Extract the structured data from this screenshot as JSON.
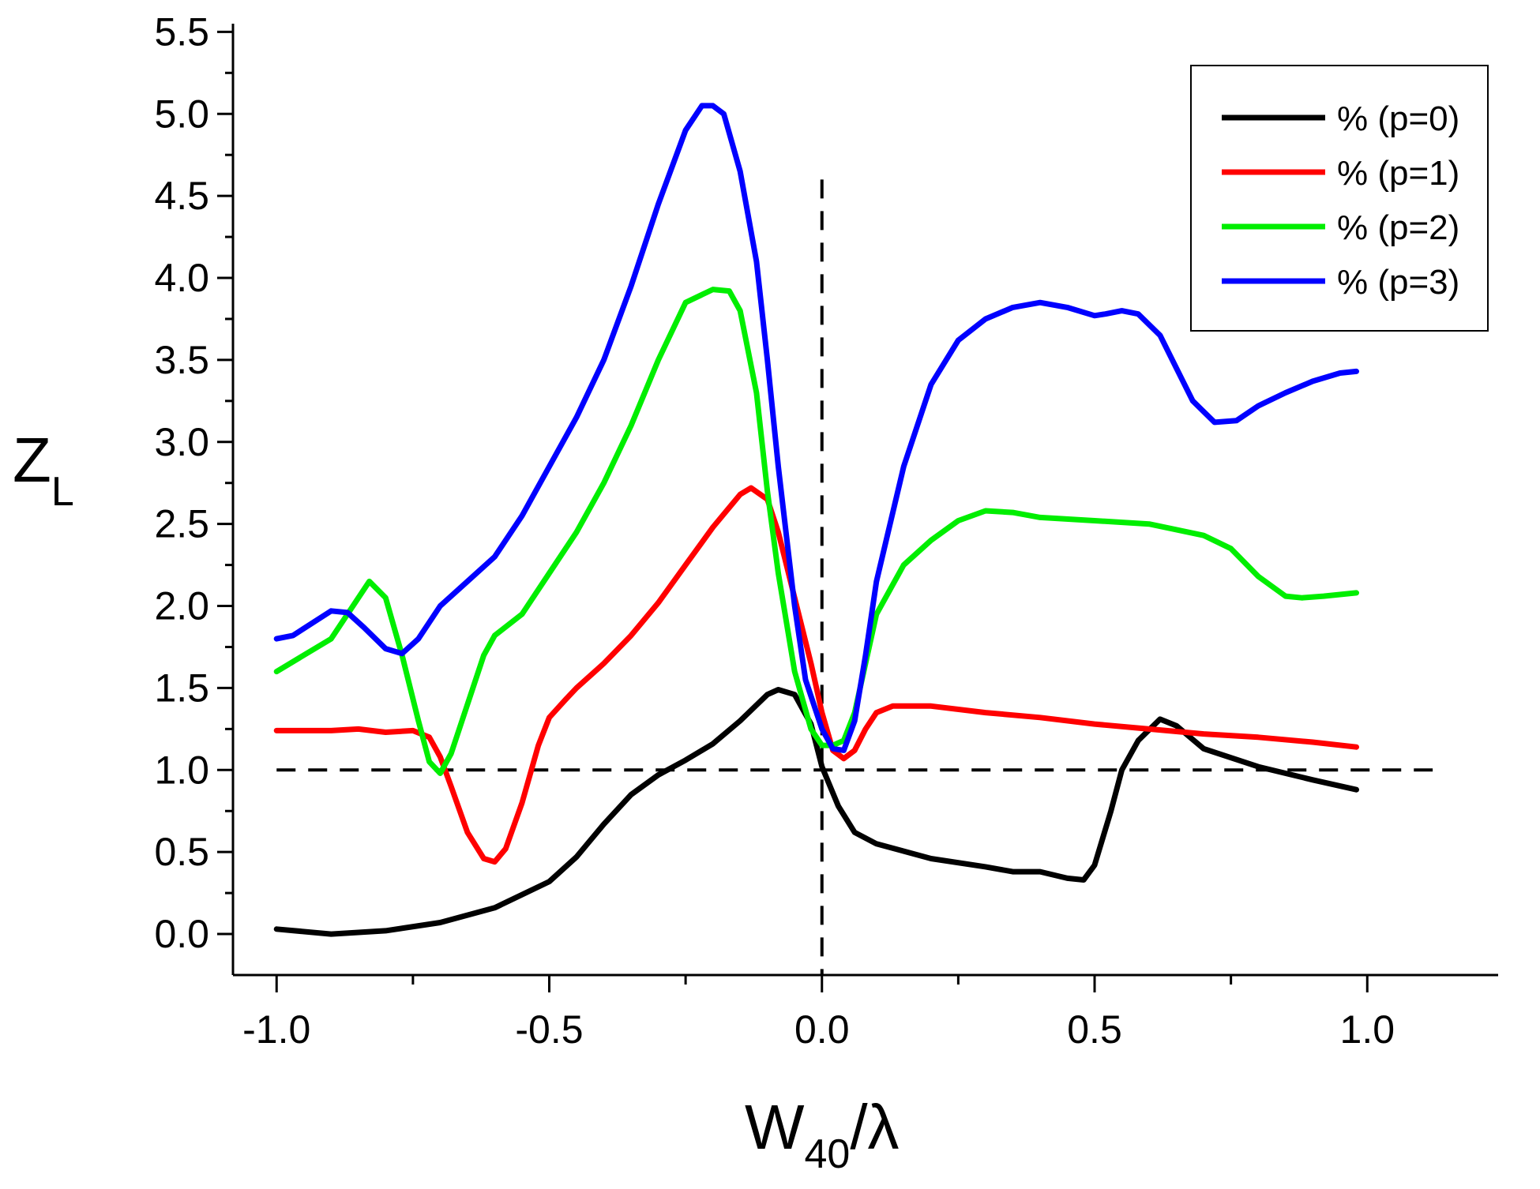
{
  "chart_data": {
    "type": "line",
    "title": "",
    "xlabel": {
      "main": "W",
      "sub": "40",
      "suffix": "/λ"
    },
    "ylabel": {
      "main": "Z",
      "sub": "L"
    },
    "xlim": [
      -1.08,
      1.24
    ],
    "ylim": [
      -0.25,
      5.55
    ],
    "x_ticks": [
      -1.0,
      -0.5,
      0.0,
      0.5,
      1.0
    ],
    "x_tick_labels": [
      "-1.0",
      "-0.5",
      "0.0",
      "0.5",
      "1.0"
    ],
    "x_minor_ticks": [
      -0.75,
      -0.25,
      0.25,
      0.75
    ],
    "y_ticks": [
      0.0,
      0.5,
      1.0,
      1.5,
      2.0,
      2.5,
      3.0,
      3.5,
      4.0,
      4.5,
      5.0,
      5.5
    ],
    "y_tick_labels": [
      "0.0",
      "0.5",
      "1.0",
      "1.5",
      "2.0",
      "2.5",
      "3.0",
      "3.5",
      "4.0",
      "4.5",
      "5.0",
      "5.5"
    ],
    "reference_lines": [
      {
        "orientation": "horizontal",
        "value": 1.0,
        "style": "dashed",
        "color": "#000000"
      },
      {
        "orientation": "vertical",
        "value": 0.0,
        "style": "dashed",
        "color": "#000000",
        "y_to": 4.6
      }
    ],
    "legend": {
      "position": "top-right",
      "frame": true
    },
    "series": [
      {
        "name": "% (p=0)",
        "color": "#000000",
        "x": [
          -1.0,
          -0.9,
          -0.8,
          -0.7,
          -0.6,
          -0.5,
          -0.45,
          -0.4,
          -0.35,
          -0.3,
          -0.25,
          -0.2,
          -0.15,
          -0.1,
          -0.08,
          -0.05,
          -0.02,
          0.0,
          0.03,
          0.06,
          0.1,
          0.2,
          0.3,
          0.35,
          0.4,
          0.45,
          0.48,
          0.5,
          0.53,
          0.55,
          0.58,
          0.62,
          0.65,
          0.7,
          0.8,
          0.9,
          0.98
        ],
        "y": [
          0.03,
          0.0,
          0.02,
          0.07,
          0.16,
          0.32,
          0.47,
          0.67,
          0.85,
          0.97,
          1.06,
          1.16,
          1.3,
          1.46,
          1.49,
          1.46,
          1.28,
          1.02,
          0.78,
          0.62,
          0.55,
          0.46,
          0.41,
          0.38,
          0.38,
          0.34,
          0.33,
          0.42,
          0.75,
          1.0,
          1.18,
          1.31,
          1.27,
          1.13,
          1.02,
          0.94,
          0.88
        ]
      },
      {
        "name": "% (p=1)",
        "color": "#ff0000",
        "x": [
          -1.0,
          -0.9,
          -0.85,
          -0.8,
          -0.75,
          -0.72,
          -0.7,
          -0.68,
          -0.65,
          -0.62,
          -0.6,
          -0.58,
          -0.55,
          -0.52,
          -0.5,
          -0.47,
          -0.45,
          -0.4,
          -0.35,
          -0.3,
          -0.25,
          -0.2,
          -0.15,
          -0.13,
          -0.1,
          -0.08,
          -0.05,
          -0.02,
          0.0,
          0.02,
          0.04,
          0.06,
          0.08,
          0.1,
          0.13,
          0.2,
          0.3,
          0.4,
          0.5,
          0.6,
          0.7,
          0.8,
          0.9,
          0.98
        ],
        "y": [
          1.24,
          1.24,
          1.25,
          1.23,
          1.24,
          1.2,
          1.08,
          0.9,
          0.62,
          0.46,
          0.44,
          0.52,
          0.8,
          1.15,
          1.32,
          1.43,
          1.5,
          1.65,
          1.82,
          2.02,
          2.25,
          2.48,
          2.68,
          2.72,
          2.65,
          2.45,
          2.05,
          1.65,
          1.35,
          1.12,
          1.07,
          1.12,
          1.25,
          1.35,
          1.39,
          1.39,
          1.35,
          1.32,
          1.28,
          1.25,
          1.22,
          1.2,
          1.17,
          1.14
        ]
      },
      {
        "name": "% (p=2)",
        "color": "#00ee00",
        "x": [
          -1.0,
          -0.9,
          -0.85,
          -0.83,
          -0.8,
          -0.77,
          -0.74,
          -0.72,
          -0.7,
          -0.68,
          -0.65,
          -0.62,
          -0.6,
          -0.55,
          -0.5,
          -0.45,
          -0.4,
          -0.35,
          -0.3,
          -0.25,
          -0.2,
          -0.17,
          -0.15,
          -0.12,
          -0.1,
          -0.08,
          -0.05,
          -0.02,
          0.0,
          0.02,
          0.04,
          0.06,
          0.08,
          0.1,
          0.15,
          0.2,
          0.25,
          0.3,
          0.35,
          0.4,
          0.5,
          0.6,
          0.7,
          0.75,
          0.8,
          0.85,
          0.88,
          0.92,
          0.98
        ],
        "y": [
          1.6,
          1.8,
          2.05,
          2.15,
          2.05,
          1.7,
          1.3,
          1.05,
          0.98,
          1.1,
          1.4,
          1.7,
          1.82,
          1.95,
          2.2,
          2.45,
          2.75,
          3.1,
          3.5,
          3.85,
          3.93,
          3.92,
          3.8,
          3.3,
          2.7,
          2.2,
          1.6,
          1.25,
          1.15,
          1.15,
          1.18,
          1.35,
          1.65,
          1.95,
          2.25,
          2.4,
          2.52,
          2.58,
          2.57,
          2.54,
          2.52,
          2.5,
          2.43,
          2.35,
          2.18,
          2.06,
          2.05,
          2.06,
          2.08
        ]
      },
      {
        "name": "% (p=3)",
        "color": "#0000ff",
        "x": [
          -1.0,
          -0.97,
          -0.9,
          -0.87,
          -0.84,
          -0.8,
          -0.77,
          -0.74,
          -0.7,
          -0.65,
          -0.6,
          -0.55,
          -0.5,
          -0.45,
          -0.4,
          -0.35,
          -0.3,
          -0.25,
          -0.22,
          -0.2,
          -0.18,
          -0.15,
          -0.12,
          -0.1,
          -0.08,
          -0.05,
          -0.03,
          0.0,
          0.02,
          0.04,
          0.06,
          0.08,
          0.1,
          0.15,
          0.2,
          0.25,
          0.3,
          0.35,
          0.4,
          0.45,
          0.5,
          0.52,
          0.55,
          0.58,
          0.62,
          0.65,
          0.68,
          0.72,
          0.76,
          0.8,
          0.85,
          0.9,
          0.95,
          0.98
        ],
        "y": [
          1.8,
          1.82,
          1.97,
          1.96,
          1.87,
          1.74,
          1.71,
          1.8,
          2.0,
          2.15,
          2.3,
          2.55,
          2.85,
          3.15,
          3.5,
          3.95,
          4.45,
          4.9,
          5.05,
          5.05,
          5.0,
          4.65,
          4.1,
          3.5,
          2.85,
          2.0,
          1.55,
          1.25,
          1.13,
          1.12,
          1.3,
          1.7,
          2.15,
          2.85,
          3.35,
          3.62,
          3.75,
          3.82,
          3.85,
          3.82,
          3.77,
          3.78,
          3.8,
          3.78,
          3.65,
          3.45,
          3.25,
          3.12,
          3.13,
          3.22,
          3.3,
          3.37,
          3.42,
          3.43
        ]
      }
    ]
  }
}
